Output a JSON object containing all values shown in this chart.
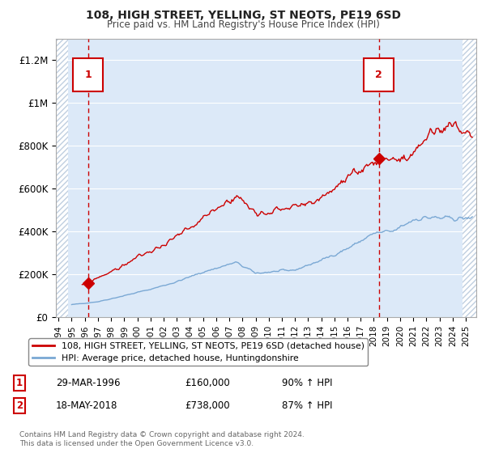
{
  "title": "108, HIGH STREET, YELLING, ST NEOTS, PE19 6SD",
  "subtitle": "Price paid vs. HM Land Registry's House Price Index (HPI)",
  "ylim": [
    0,
    1300000
  ],
  "yticks": [
    0,
    200000,
    400000,
    600000,
    800000,
    1000000,
    1200000
  ],
  "ytick_labels": [
    "£0",
    "£200K",
    "£400K",
    "£600K",
    "£800K",
    "£1M",
    "£1.2M"
  ],
  "xlim_start": 1993.8,
  "xlim_end": 2025.8,
  "xticks": [
    1994,
    1995,
    1996,
    1997,
    1998,
    1999,
    2000,
    2001,
    2002,
    2003,
    2004,
    2005,
    2006,
    2007,
    2008,
    2009,
    2010,
    2011,
    2012,
    2013,
    2014,
    2015,
    2016,
    2017,
    2018,
    2019,
    2020,
    2021,
    2022,
    2023,
    2024,
    2025
  ],
  "background_color": "#ffffff",
  "plot_bg_color": "#dce9f8",
  "hatch_color": "#c0cfe0",
  "grid_color": "#ffffff",
  "red_line_color": "#cc0000",
  "blue_line_color": "#7aa8d4",
  "dashed_line_color": "#cc0000",
  "transaction1_x": 1996.24,
  "transaction1_y": 160000,
  "transaction1_label": "1",
  "transaction1_date": "29-MAR-1996",
  "transaction1_price": "£160,000",
  "transaction1_hpi": "90% ↑ HPI",
  "transaction2_x": 2018.38,
  "transaction2_y": 738000,
  "transaction2_label": "2",
  "transaction2_date": "18-MAY-2018",
  "transaction2_price": "£738,000",
  "transaction2_hpi": "87% ↑ HPI",
  "legend_line1": "108, HIGH STREET, YELLING, ST NEOTS, PE19 6SD (detached house)",
  "legend_line2": "HPI: Average price, detached house, Huntingdonshire",
  "footnote": "Contains HM Land Registry data © Crown copyright and database right 2024.\nThis data is licensed under the Open Government Licence v3.0.",
  "hatch_left_end": 1994.75,
  "hatch_right_start": 2024.75
}
